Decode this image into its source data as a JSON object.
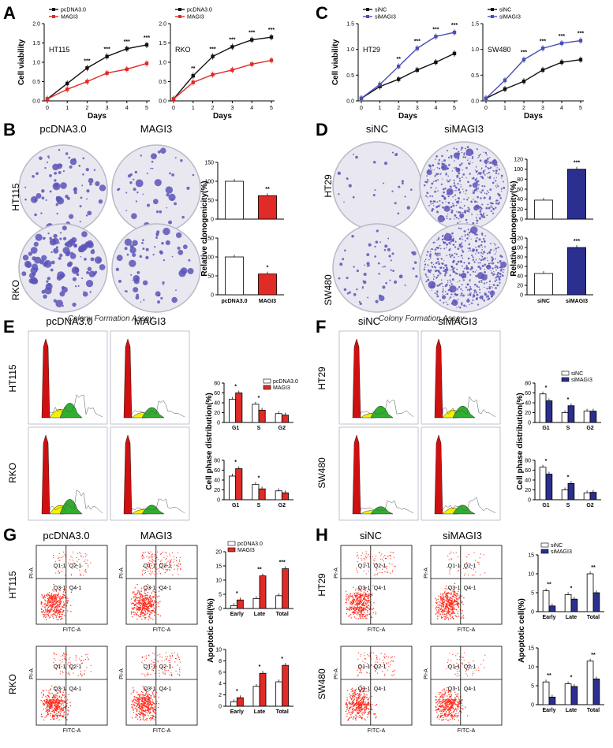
{
  "colors": {
    "black": "#111111",
    "red": "#e02b27",
    "blue": "#4a4fb3",
    "navy": "#2b2f8f",
    "dish": "#e9e8f0",
    "colony": "#5a55b8",
    "flow_red": "#d01010",
    "flow_yellow": "#f2f200",
    "flow_green": "#2fae2f",
    "dot_red": "#ff2a1a"
  },
  "panel_letters": [
    "A",
    "B",
    "C",
    "D",
    "E",
    "F",
    "G",
    "H"
  ],
  "axis_titles": {
    "cell_viability": "Cell viability",
    "days": "Days",
    "relative_clonogenicity": "Relative clonogenicity(%)",
    "cell_phase_distribution": "Cell phase distribution(%)",
    "apoptotic_cell": "Apoptotic cell(%)"
  },
  "headers": {
    "pcdna": "pcDNA3.0",
    "magi3": "MAGI3",
    "sinc": "siNC",
    "simagi3": "siMAGI3"
  },
  "row_labels": [
    "HT115",
    "RKO",
    "HT29",
    "SW480"
  ],
  "captions": {
    "colony": "Colony Formation Assay"
  },
  "flow_axes": {
    "x": "FITC-A",
    "y": "PI-A"
  },
  "quadrants": [
    "Q1-1",
    "Q2-1",
    "Q3-1",
    "Q4-1"
  ],
  "chart_data": [
    {
      "panel": "A-HT115",
      "type": "line",
      "x": [
        0,
        1,
        2,
        3,
        4,
        5
      ],
      "ylim": [
        0,
        2.0
      ],
      "yticks": [
        "0.0",
        "0.5",
        "1.0",
        "1.5",
        "2.0"
      ],
      "xlabel": "Days",
      "ylabel": "Cell viability",
      "cell_label": "HT115",
      "series": [
        {
          "name": "pcDNA3.0",
          "values": [
            0.05,
            0.45,
            0.85,
            1.15,
            1.35,
            1.45
          ]
        },
        {
          "name": "MAGI3",
          "values": [
            0.05,
            0.3,
            0.5,
            0.72,
            0.82,
            0.97
          ]
        }
      ],
      "significance": [
        "",
        "",
        "***",
        "***",
        "***",
        "***"
      ]
    },
    {
      "panel": "A-RKO",
      "type": "line",
      "x": [
        0,
        1,
        2,
        3,
        4,
        5
      ],
      "ylim": [
        0,
        2.0
      ],
      "yticks": [
        "0.0",
        "0.5",
        "1.0",
        "1.5",
        "2.0"
      ],
      "xlabel": "Days",
      "ylabel": "",
      "cell_label": "RKO",
      "series": [
        {
          "name": "pcDNA3.0",
          "values": [
            0.05,
            0.65,
            1.15,
            1.4,
            1.58,
            1.65
          ]
        },
        {
          "name": "MAGI3",
          "values": [
            0.05,
            0.48,
            0.68,
            0.8,
            0.95,
            1.05
          ]
        }
      ],
      "significance": [
        "",
        "**",
        "***",
        "***",
        "***",
        "***"
      ]
    },
    {
      "panel": "C-HT29",
      "type": "line",
      "x": [
        0,
        1,
        2,
        3,
        4,
        5
      ],
      "ylim": [
        0,
        1.5
      ],
      "yticks": [
        "0.0",
        "0.5",
        "1.0",
        "1.5"
      ],
      "xlabel": "Days",
      "ylabel": "Cell viability",
      "cell_label": "HT29",
      "series": [
        {
          "name": "siNC",
          "values": [
            0.05,
            0.28,
            0.42,
            0.6,
            0.75,
            0.92
          ]
        },
        {
          "name": "siMAGI3",
          "values": [
            0.05,
            0.32,
            0.67,
            1.02,
            1.25,
            1.33
          ]
        }
      ],
      "significance": [
        "",
        "",
        "**",
        "***",
        "***",
        "***"
      ]
    },
    {
      "panel": "C-SW480",
      "type": "line",
      "x": [
        0,
        1,
        2,
        3,
        4,
        5
      ],
      "ylim": [
        0,
        1.5
      ],
      "yticks": [
        "0.0",
        "0.5",
        "1.0",
        "1.5"
      ],
      "xlabel": "Days",
      "ylabel": "",
      "cell_label": "SW480",
      "series": [
        {
          "name": "siNC",
          "values": [
            0.05,
            0.23,
            0.38,
            0.6,
            0.75,
            0.8
          ]
        },
        {
          "name": "siMAGI3",
          "values": [
            0.05,
            0.4,
            0.8,
            1.02,
            1.12,
            1.17
          ]
        }
      ],
      "significance": [
        "",
        "",
        "***",
        "***",
        "***",
        "***"
      ]
    },
    {
      "panel": "B-HT115",
      "type": "bar",
      "categories": [
        "pcDNA3.0",
        "MAGI3"
      ],
      "values": [
        100,
        62
      ],
      "ylim": [
        0,
        150
      ],
      "yticks": [
        "0",
        "50",
        "100",
        "150"
      ],
      "significance": [
        "",
        "**"
      ],
      "xlabels_visible": false
    },
    {
      "panel": "B-RKO",
      "type": "bar",
      "categories": [
        "pcDNA3.0",
        "MAGI3"
      ],
      "values": [
        100,
        55
      ],
      "ylim": [
        0,
        150
      ],
      "yticks": [
        "0",
        "50",
        "100",
        "150"
      ],
      "significance": [
        "",
        "*"
      ],
      "xlabels_visible": true
    },
    {
      "panel": "D-HT29",
      "type": "bar",
      "categories": [
        "siNC",
        "siMAGI3"
      ],
      "values": [
        38,
        100
      ],
      "ylim": [
        0,
        120
      ],
      "yticks": [
        "0",
        "20",
        "40",
        "60",
        "80",
        "100",
        "120"
      ],
      "significance": [
        "",
        "***"
      ],
      "xlabels_visible": false
    },
    {
      "panel": "D-SW480",
      "type": "bar",
      "categories": [
        "siNC",
        "siMAGI3"
      ],
      "values": [
        45,
        100
      ],
      "ylim": [
        0,
        120
      ],
      "yticks": [
        "0",
        "20",
        "40",
        "60",
        "80",
        "100",
        "120"
      ],
      "significance": [
        "",
        "***"
      ],
      "xlabels_visible": true
    },
    {
      "panel": "E-HT115",
      "type": "bar",
      "categories": [
        "G1",
        "S",
        "G2"
      ],
      "ylim": [
        0,
        80
      ],
      "yticks": [
        "0",
        "20",
        "40",
        "60",
        "80"
      ],
      "series": [
        {
          "name": "pcDNA3.0",
          "values": [
            47,
            37,
            18
          ]
        },
        {
          "name": "MAGI3",
          "values": [
            60,
            25,
            15
          ]
        }
      ],
      "significance": [
        "*",
        "*",
        ""
      ]
    },
    {
      "panel": "E-RKO",
      "type": "bar",
      "categories": [
        "G1",
        "S",
        "G2"
      ],
      "ylim": [
        0,
        80
      ],
      "yticks": [
        "0",
        "20",
        "40",
        "60",
        "80"
      ],
      "series": [
        {
          "name": "pcDNA3.0",
          "values": [
            48,
            31,
            18
          ]
        },
        {
          "name": "MAGI3",
          "values": [
            63,
            22,
            14
          ]
        }
      ],
      "significance": [
        "*",
        "*",
        ""
      ]
    },
    {
      "panel": "F-HT29",
      "type": "bar",
      "categories": [
        "G1",
        "S",
        "G2"
      ],
      "ylim": [
        0,
        80
      ],
      "yticks": [
        "0",
        "20",
        "40",
        "60",
        "80"
      ],
      "series": [
        {
          "name": "siNC",
          "values": [
            58,
            20,
            23
          ]
        },
        {
          "name": "siMAGI3",
          "values": [
            44,
            34,
            23
          ]
        }
      ],
      "significance": [
        "*",
        "*",
        ""
      ]
    },
    {
      "panel": "F-SW480",
      "type": "bar",
      "categories": [
        "G1",
        "S",
        "G2"
      ],
      "ylim": [
        0,
        80
      ],
      "yticks": [
        "0",
        "20",
        "40",
        "60",
        "80"
      ],
      "series": [
        {
          "name": "siNC",
          "values": [
            66,
            20,
            14
          ]
        },
        {
          "name": "siMAGI3",
          "values": [
            52,
            33,
            15
          ]
        }
      ],
      "significance": [
        "*",
        "*",
        ""
      ]
    },
    {
      "panel": "G-HT115",
      "type": "bar",
      "categories": [
        "Early",
        "Late",
        "Total"
      ],
      "ylim": [
        0,
        20
      ],
      "yticks": [
        "0",
        "5",
        "10",
        "15",
        "20"
      ],
      "series": [
        {
          "name": "pcDNA3.0",
          "values": [
            1,
            3.5,
            4.5
          ]
        },
        {
          "name": "MAGI3",
          "values": [
            3,
            11.5,
            14
          ]
        }
      ],
      "significance": [
        "*",
        "**",
        "***"
      ]
    },
    {
      "panel": "G-RKO",
      "type": "bar",
      "categories": [
        "Early",
        "Late",
        "Total"
      ],
      "ylim": [
        0,
        10
      ],
      "yticks": [
        "0",
        "2",
        "4",
        "6",
        "8",
        "10"
      ],
      "series": [
        {
          "name": "pcDNA3.0",
          "values": [
            0.8,
            3.5,
            4.3
          ]
        },
        {
          "name": "MAGI3",
          "values": [
            1.5,
            5.8,
            7.2
          ]
        }
      ],
      "significance": [
        "*",
        "*",
        "*"
      ]
    },
    {
      "panel": "H-HT29",
      "type": "bar",
      "categories": [
        "Early",
        "Late",
        "Total"
      ],
      "ylim": [
        0,
        15
      ],
      "yticks": [
        "0",
        "5",
        "10",
        "15"
      ],
      "series": [
        {
          "name": "siNC",
          "values": [
            5.5,
            4.5,
            10
          ]
        },
        {
          "name": "siMAGI3",
          "values": [
            1.5,
            3.3,
            5
          ]
        }
      ],
      "significance": [
        "**",
        "*",
        "**"
      ]
    },
    {
      "panel": "H-SW480",
      "type": "bar",
      "categories": [
        "Early",
        "Late",
        "Total"
      ],
      "ylim": [
        0,
        15
      ],
      "yticks": [
        "0",
        "5",
        "10",
        "15"
      ],
      "series": [
        {
          "name": "siNC",
          "values": [
            6,
            5.5,
            11.5
          ]
        },
        {
          "name": "siMAGI3",
          "values": [
            2,
            4.8,
            6.8
          ]
        }
      ],
      "significance": [
        "**",
        "*",
        "**"
      ]
    }
  ]
}
